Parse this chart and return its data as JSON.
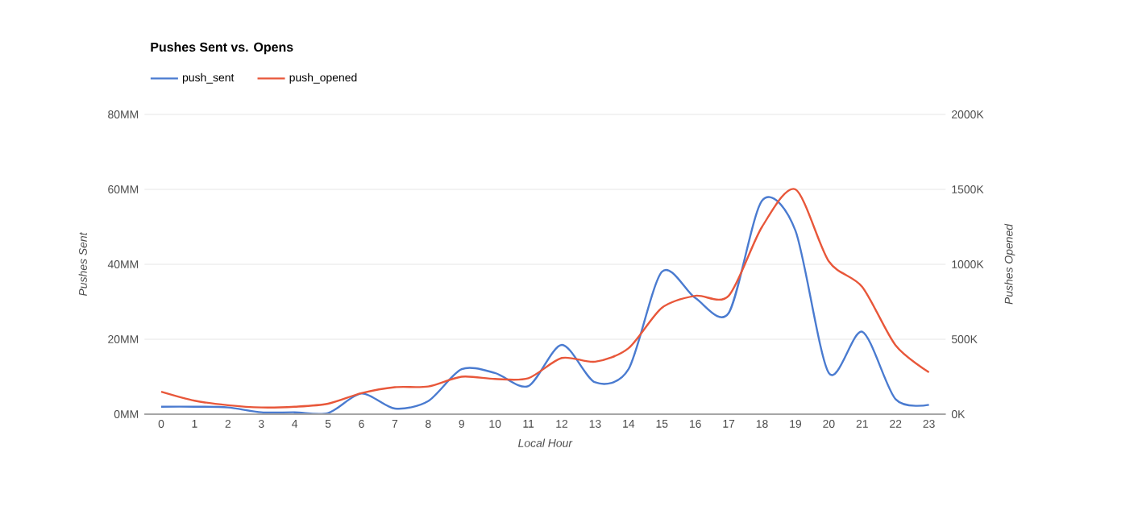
{
  "chart_data": {
    "type": "line",
    "title": "Pushes Sent vs. Opens",
    "xlabel": "Local Hour",
    "ylabel": "Pushes Sent",
    "y2label": "Pushes Opened",
    "categories": [
      "0",
      "1",
      "2",
      "3",
      "4",
      "5",
      "6",
      "7",
      "8",
      "9",
      "10",
      "11",
      "12",
      "13",
      "14",
      "15",
      "16",
      "17",
      "18",
      "19",
      "20",
      "21",
      "22",
      "23"
    ],
    "series": [
      {
        "name": "push_sent",
        "color": "#4a7bd0",
        "values": [
          2,
          2,
          1.8,
          0.5,
          0.5,
          0.3,
          5.5,
          1.5,
          3.5,
          12,
          11,
          7.5,
          18.5,
          8.5,
          12,
          38,
          31,
          27,
          57,
          49,
          11,
          22,
          4,
          2.5
        ]
      },
      {
        "name": "push_opened",
        "color": "#e8573a",
        "axis": "y2",
        "values": [
          150,
          90,
          60,
          45,
          50,
          70,
          140,
          180,
          185,
          250,
          235,
          240,
          375,
          350,
          440,
          710,
          790,
          790,
          1250,
          1500,
          1020,
          850,
          460,
          280
        ]
      }
    ],
    "ylim": [
      0,
      80
    ],
    "yticks": [
      {
        "value": 0,
        "label": "0MM"
      },
      {
        "value": 20,
        "label": "20MM"
      },
      {
        "value": 40,
        "label": "40MM"
      },
      {
        "value": 60,
        "label": "60MM"
      },
      {
        "value": 80,
        "label": "80MM"
      }
    ],
    "y2lim": [
      0,
      2000
    ],
    "y2ticks": [
      {
        "value": 0,
        "label": "0K"
      },
      {
        "value": 500,
        "label": "500K"
      },
      {
        "value": 1000,
        "label": "1000K"
      },
      {
        "value": 1500,
        "label": "1500K"
      },
      {
        "value": 2000,
        "label": "2000K"
      }
    ],
    "grid": "y",
    "legend": "top left",
    "line_style": "solid",
    "marker": "none"
  }
}
